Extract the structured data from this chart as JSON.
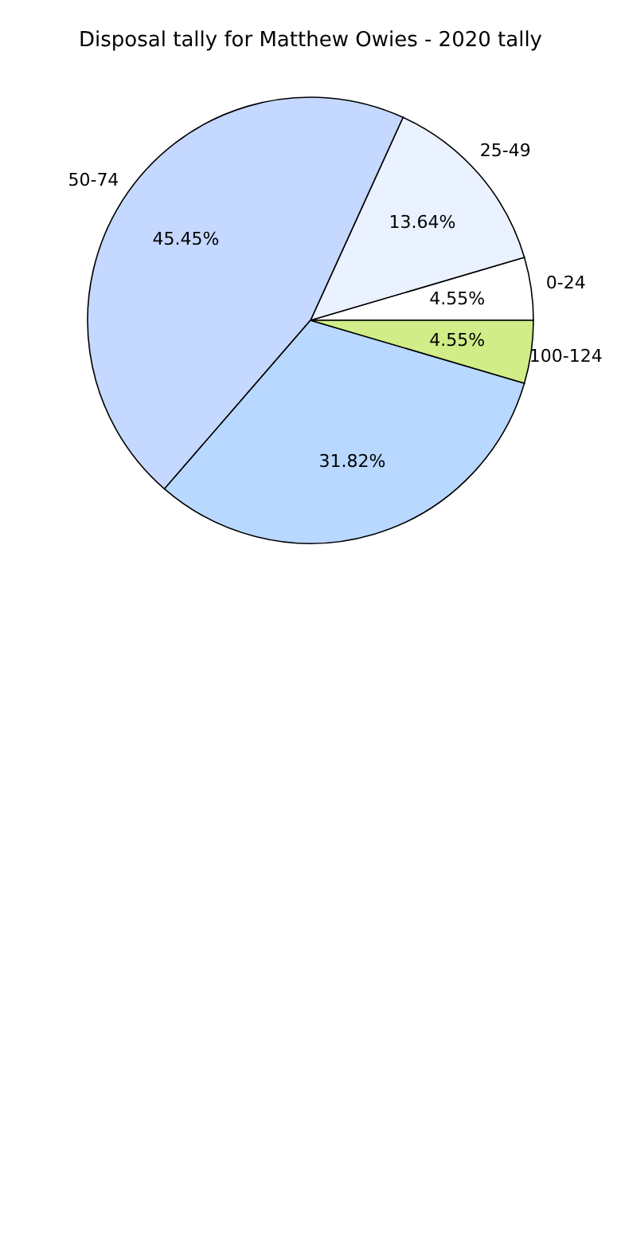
{
  "chart_data": {
    "type": "pie",
    "title": "Disposal tally for Matthew Owies - 2020 tally",
    "categories": [
      "0-24",
      "25-49",
      "50-74",
      null,
      "100-124"
    ],
    "values": [
      4.55,
      13.64,
      45.45,
      31.82,
      4.55
    ],
    "colors": [
      "#ffffff",
      "#eaf1ff",
      "#c5d8ff",
      "#b8d8ff",
      "#d0ed88"
    ],
    "value_labels": [
      "4.55%",
      "13.64%",
      "45.45%",
      "31.82%",
      "4.55%"
    ]
  }
}
